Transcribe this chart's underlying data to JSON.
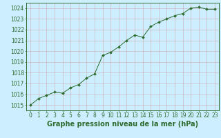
{
  "x": [
    0,
    1,
    2,
    3,
    4,
    5,
    6,
    7,
    8,
    9,
    10,
    11,
    12,
    13,
    14,
    15,
    16,
    17,
    18,
    19,
    20,
    21,
    22,
    23
  ],
  "y": [
    1015.0,
    1015.6,
    1015.9,
    1016.2,
    1016.1,
    1016.6,
    1016.9,
    1017.5,
    1017.9,
    1019.6,
    1019.9,
    1020.4,
    1021.0,
    1021.5,
    1021.3,
    1022.3,
    1022.7,
    1023.0,
    1023.3,
    1023.5,
    1024.0,
    1024.1,
    1023.9,
    1023.9
  ],
  "line_color": "#2d6a2d",
  "marker": "D",
  "marker_size": 2.0,
  "bg_color": "#cceeff",
  "grid_color": "#cc9999",
  "xlabel": "Graphe pression niveau de la mer (hPa)",
  "xlabel_fontsize": 7,
  "xlabel_color": "#2d6a2d",
  "yticks": [
    1015,
    1016,
    1017,
    1018,
    1019,
    1020,
    1021,
    1022,
    1023,
    1024
  ],
  "xticks": [
    0,
    1,
    2,
    3,
    4,
    5,
    6,
    7,
    8,
    9,
    10,
    11,
    12,
    13,
    14,
    15,
    16,
    17,
    18,
    19,
    20,
    21,
    22,
    23
  ],
  "ylim": [
    1014.5,
    1024.5
  ],
  "xlim": [
    -0.5,
    23.5
  ],
  "tick_color": "#2d6a2d",
  "tick_fontsize": 5.5
}
